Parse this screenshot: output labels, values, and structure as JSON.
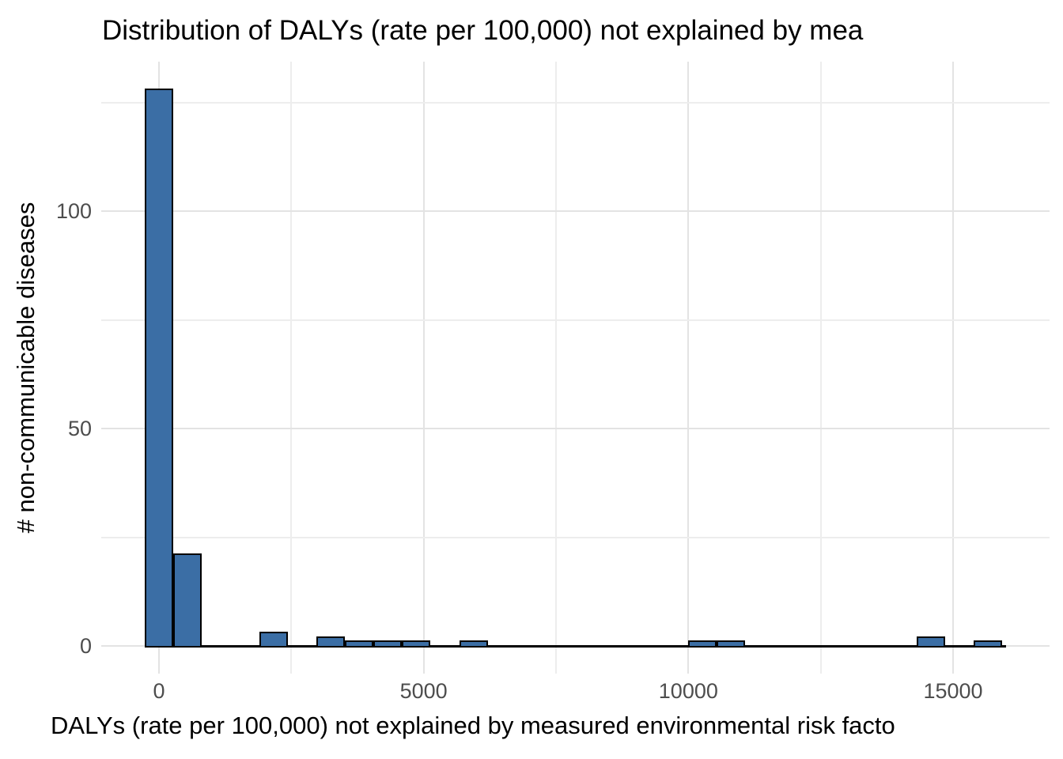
{
  "title": "Distribution of DALYs (rate per 100,000) not explained by mea",
  "x_axis": {
    "label": "DALYs (rate per 100,000) not explained by measured environmental risk facto",
    "tick_labels": [
      "0",
      "5000",
      "10000",
      "15000"
    ],
    "tick_values": [
      0,
      5000,
      10000,
      15000
    ],
    "minor_tick_values": [
      2500,
      7500,
      12500
    ]
  },
  "y_axis": {
    "label": "# non-communicable diseases",
    "tick_labels": [
      "0",
      "50",
      "100"
    ],
    "tick_values": [
      0,
      50,
      100
    ],
    "minor_tick_values": [
      25,
      75,
      125
    ]
  },
  "chart_data": {
    "type": "bar",
    "subtype": "histogram",
    "title": "Distribution of DALYs (rate per 100,000) not explained by mea",
    "xlabel": "DALYs (rate per 100,000) not explained by measured environmental risk facto",
    "ylabel": "# non-communicable diseases",
    "bin_width": 540,
    "bins": [
      {
        "center": 0,
        "count": 128
      },
      {
        "center": 540,
        "count": 21
      },
      {
        "center": 2160,
        "count": 3
      },
      {
        "center": 3240,
        "count": 2
      },
      {
        "center": 3780,
        "count": 1
      },
      {
        "center": 4320,
        "count": 1
      },
      {
        "center": 4860,
        "count": 1
      },
      {
        "center": 5940,
        "count": 1
      },
      {
        "center": 10260,
        "count": 1
      },
      {
        "center": 10800,
        "count": 1
      },
      {
        "center": 14580,
        "count": 2
      },
      {
        "center": 15660,
        "count": 1
      }
    ],
    "zero_baseline_extent": [
      -270,
      16000
    ],
    "xlim": [
      -300,
      16600
    ],
    "ylim": [
      0,
      134
    ],
    "grid": true,
    "legend": false
  },
  "colors": {
    "bar_fill": "#3b6ea5",
    "bar_stroke": "#000000",
    "grid_major": "#e3e3e3",
    "grid_minor": "#ededed",
    "tick_text": "#4d4d4d",
    "text": "#000000",
    "background": "#ffffff"
  }
}
